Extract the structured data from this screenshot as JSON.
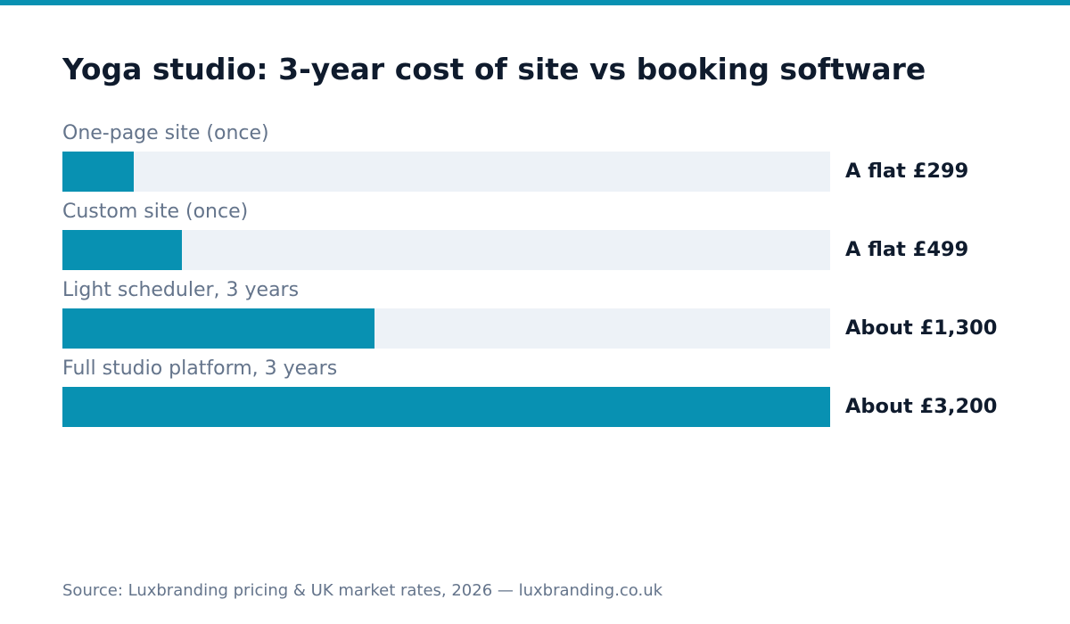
{
  "colors": {
    "accent": "#0891b2",
    "track": "#edf2f7",
    "title": "#0f1b2d",
    "muted": "#64748b"
  },
  "chart_data": {
    "type": "bar",
    "orientation": "horizontal",
    "title": "Yoga studio: 3-year cost of site vs booking software",
    "categories": [
      "One-page site (once)",
      "Custom site (once)",
      "Light scheduler, 3 years",
      "Full studio platform, 3 years"
    ],
    "values": [
      299,
      499,
      1300,
      3200
    ],
    "value_labels": [
      "A flat £299",
      "A flat £499",
      "About £1,300",
      "About £3,200"
    ],
    "unit": "£",
    "xlim": [
      0,
      3200
    ],
    "grid": false,
    "legend": "none"
  },
  "footer": {
    "source": "Source: Luxbranding pricing & UK market rates, 2026 — luxbranding.co.uk"
  }
}
